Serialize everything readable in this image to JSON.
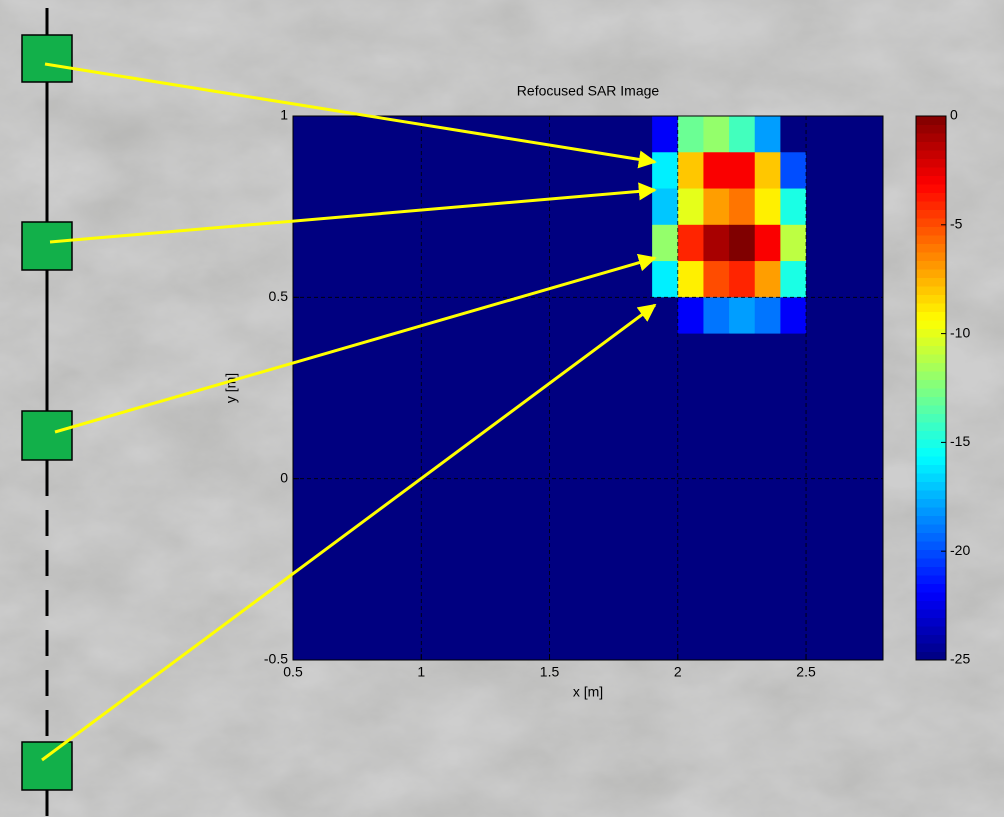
{
  "chart_data": {
    "type": "heatmap",
    "title": "Refocused SAR Image",
    "x_label": "x [m]",
    "y_label": "y [m]",
    "colormap": "jet",
    "clim": [
      -25,
      0
    ],
    "cticks": [
      0,
      -5,
      -10,
      -15,
      -20,
      -25
    ],
    "xlim": [
      0.5,
      2.8
    ],
    "xticks": [
      0.5,
      1,
      1.5,
      2,
      2.5
    ],
    "ylim": [
      -0.5,
      1
    ],
    "yticks": [
      -0.5,
      0,
      0.5,
      1
    ],
    "grid": true,
    "x": [
      0.55,
      0.65,
      0.75,
      0.85,
      0.95,
      1.05,
      1.15,
      1.25,
      1.35,
      1.45,
      1.55,
      1.65,
      1.75,
      1.85,
      1.95,
      2.05,
      2.15,
      2.25,
      2.35,
      2.45,
      2.55,
      2.65,
      2.75
    ],
    "y": [
      0.95,
      0.85,
      0.75,
      0.65,
      0.55,
      0.45,
      0.35,
      0.25,
      0.15,
      0.05,
      -0.05,
      -0.15,
      -0.25,
      -0.35,
      -0.45
    ],
    "z": [
      [
        -25,
        -25,
        -25,
        -25,
        -25,
        -25,
        -25,
        -25,
        -25,
        -25,
        -25,
        -25,
        -25,
        -25,
        -22,
        -13,
        -12,
        -14,
        -18,
        -25,
        -25,
        -25,
        -25
      ],
      [
        -25,
        -25,
        -25,
        -25,
        -25,
        -25,
        -25,
        -25,
        -25,
        -25,
        -25,
        -25,
        -25,
        -25,
        -16,
        -8,
        -3,
        -3,
        -8,
        -20,
        -25,
        -25,
        -25
      ],
      [
        -25,
        -25,
        -25,
        -25,
        -25,
        -25,
        -25,
        -25,
        -25,
        -25,
        -25,
        -25,
        -25,
        -25,
        -17,
        -10,
        -7,
        -6,
        -9,
        -15,
        -25,
        -25,
        -25
      ],
      [
        -25,
        -25,
        -25,
        -25,
        -25,
        -25,
        -25,
        -25,
        -25,
        -25,
        -25,
        -25,
        -25,
        -25,
        -12,
        -4,
        -1,
        0,
        -3,
        -11,
        -25,
        -25,
        -25
      ],
      [
        -25,
        -25,
        -25,
        -25,
        -25,
        -25,
        -25,
        -25,
        -25,
        -25,
        -25,
        -25,
        -25,
        -25,
        -16,
        -9,
        -5,
        -4,
        -7,
        -15,
        -25,
        -25,
        -25
      ],
      [
        -25,
        -25,
        -25,
        -25,
        -25,
        -25,
        -25,
        -25,
        -25,
        -25,
        -25,
        -25,
        -25,
        -25,
        -25,
        -22,
        -19,
        -18,
        -19,
        -22,
        -25,
        -25,
        -25
      ],
      [
        -25,
        -25,
        -25,
        -25,
        -25,
        -25,
        -25,
        -25,
        -25,
        -25,
        -25,
        -25,
        -25,
        -25,
        -25,
        -25,
        -25,
        -25,
        -25,
        -25,
        -25,
        -25,
        -25
      ],
      [
        -25,
        -25,
        -25,
        -25,
        -25,
        -25,
        -25,
        -25,
        -25,
        -25,
        -25,
        -25,
        -25,
        -25,
        -25,
        -25,
        -25,
        -25,
        -25,
        -25,
        -25,
        -25,
        -25
      ],
      [
        -25,
        -25,
        -25,
        -25,
        -25,
        -25,
        -25,
        -25,
        -25,
        -25,
        -25,
        -25,
        -25,
        -25,
        -25,
        -25,
        -25,
        -25,
        -25,
        -25,
        -25,
        -25,
        -25
      ],
      [
        -25,
        -25,
        -25,
        -25,
        -25,
        -25,
        -25,
        -25,
        -25,
        -25,
        -25,
        -25,
        -25,
        -25,
        -25,
        -25,
        -25,
        -25,
        -25,
        -25,
        -25,
        -25,
        -25
      ],
      [
        -25,
        -25,
        -25,
        -25,
        -25,
        -25,
        -25,
        -25,
        -25,
        -25,
        -25,
        -25,
        -25,
        -25,
        -25,
        -25,
        -25,
        -25,
        -25,
        -25,
        -25,
        -25,
        -25
      ],
      [
        -25,
        -25,
        -25,
        -25,
        -25,
        -25,
        -25,
        -25,
        -25,
        -25,
        -25,
        -25,
        -25,
        -25,
        -25,
        -25,
        -25,
        -25,
        -25,
        -25,
        -25,
        -25,
        -25
      ],
      [
        -25,
        -25,
        -25,
        -25,
        -25,
        -25,
        -25,
        -25,
        -25,
        -25,
        -25,
        -25,
        -25,
        -25,
        -25,
        -25,
        -25,
        -25,
        -25,
        -25,
        -25,
        -25,
        -25
      ],
      [
        -25,
        -25,
        -25,
        -25,
        -25,
        -25,
        -25,
        -25,
        -25,
        -25,
        -25,
        -25,
        -25,
        -25,
        -25,
        -25,
        -25,
        -25,
        -25,
        -25,
        -25,
        -25,
        -25
      ],
      [
        -25,
        -25,
        -25,
        -25,
        -25,
        -25,
        -25,
        -25,
        -25,
        -25,
        -25,
        -25,
        -25,
        -25,
        -25,
        -25,
        -25,
        -25,
        -25,
        -25,
        -25,
        -25,
        -25
      ]
    ]
  }
}
